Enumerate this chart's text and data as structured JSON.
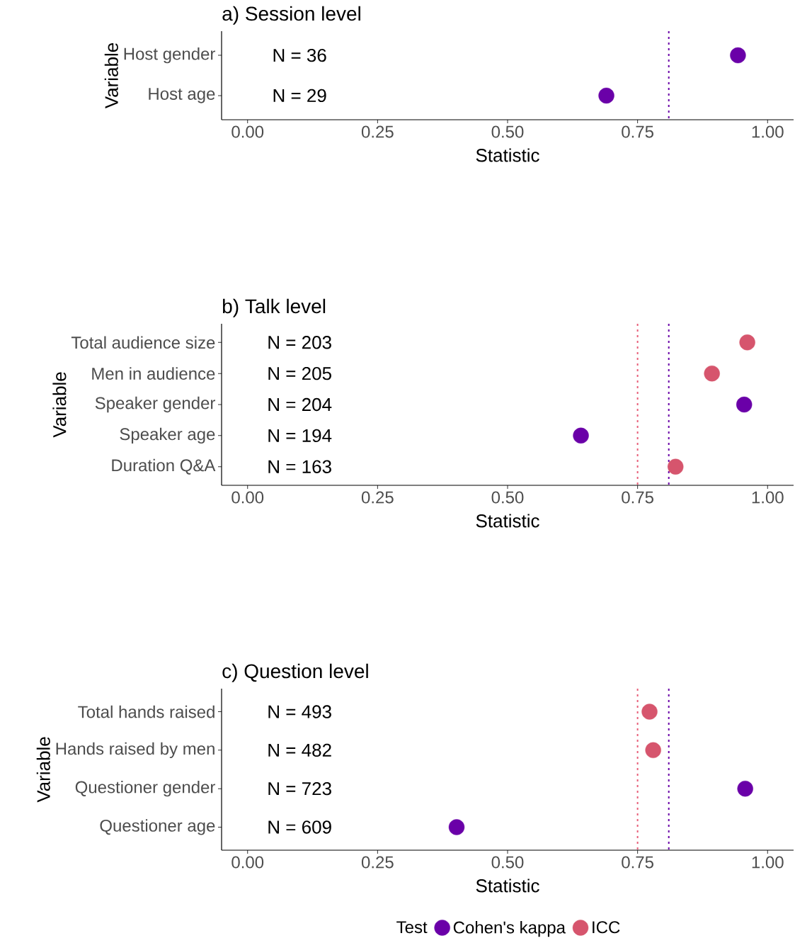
{
  "chart_data": [
    {
      "type": "scatter",
      "orientation": "horizontal",
      "title": "a) Session level",
      "xlabel": "Statistic",
      "ylabel": "Variable",
      "categories": [
        "Host gender",
        "Host age"
      ],
      "series": [
        {
          "color": "#6a00a8",
          "values": [
            0.943,
            0.69
          ]
        }
      ],
      "xlim": [
        -0.05,
        1.05
      ],
      "xticks": [
        {
          "value": 0,
          "label": "0.00"
        },
        {
          "value": 0.25,
          "label": "0.25"
        },
        {
          "value": 0.5,
          "label": "0.50"
        },
        {
          "value": 0.75,
          "label": "0.75"
        },
        {
          "value": 1,
          "label": "1.00"
        }
      ],
      "ref_lines": [
        {
          "axis": "x",
          "value": 0.81,
          "color": "#6a00a8",
          "line_style": "dotted"
        }
      ],
      "annotations": [
        "N = 36",
        "N = 29"
      ],
      "marker": "circle",
      "grid": false
    },
    {
      "type": "scatter",
      "orientation": "horizontal",
      "title": "b) Talk level",
      "xlabel": "Statistic",
      "ylabel": "Variable",
      "categories": [
        "Total audience size",
        "Men in audience",
        "Speaker gender",
        "Speaker age",
        "Duration Q&A"
      ],
      "series": [
        {
          "color": "#6a00a8",
          "values": [
            null,
            null,
            0.955,
            0.641,
            null
          ]
        },
        {
          "color": "#d6556d",
          "values": [
            0.961,
            0.893,
            null,
            null,
            0.823
          ]
        }
      ],
      "xlim": [
        -0.05,
        1.05
      ],
      "xticks": [
        {
          "value": 0,
          "label": "0.00"
        },
        {
          "value": 0.25,
          "label": "0.25"
        },
        {
          "value": 0.5,
          "label": "0.50"
        },
        {
          "value": 0.75,
          "label": "0.75"
        },
        {
          "value": 1,
          "label": "1.00"
        }
      ],
      "ref_lines": [
        {
          "axis": "x",
          "value": 0.75,
          "color": "#e8607a",
          "line_style": "dotted"
        },
        {
          "axis": "x",
          "value": 0.81,
          "color": "#6a00a8",
          "line_style": "dotted"
        }
      ],
      "annotations": [
        "N = 203",
        "N = 205",
        "N = 204",
        "N = 194",
        "N = 163"
      ],
      "marker": "circle",
      "grid": false
    },
    {
      "type": "scatter",
      "orientation": "horizontal",
      "title": "c) Question level",
      "xlabel": "Statistic",
      "ylabel": "Variable",
      "categories": [
        "Total hands raised",
        "Hands raised by men",
        "Questioner gender",
        "Questioner age"
      ],
      "series": [
        {
          "name": "Cohen's kappa",
          "color": "#6a00a8",
          "values": [
            null,
            null,
            0.957,
            0.402
          ]
        },
        {
          "name": "ICC",
          "color": "#d6556d",
          "values": [
            0.773,
            0.78,
            null,
            null
          ]
        }
      ],
      "xlim": [
        -0.05,
        1.05
      ],
      "xticks": [
        {
          "value": 0,
          "label": "0.00"
        },
        {
          "value": 0.25,
          "label": "0.25"
        },
        {
          "value": 0.5,
          "label": "0.50"
        },
        {
          "value": 0.75,
          "label": "0.75"
        },
        {
          "value": 1,
          "label": "1.00"
        }
      ],
      "ref_lines": [
        {
          "axis": "x",
          "value": 0.75,
          "color": "#e8607a",
          "line_style": "dotted"
        },
        {
          "axis": "x",
          "value": 0.81,
          "color": "#6a00a8",
          "line_style": "dotted"
        }
      ],
      "annotations": [
        "N = 493",
        "N = 482",
        "N = 723",
        "N = 609"
      ],
      "legend": "bottom",
      "legend_title": "Test",
      "marker": "circle",
      "grid": false
    }
  ]
}
